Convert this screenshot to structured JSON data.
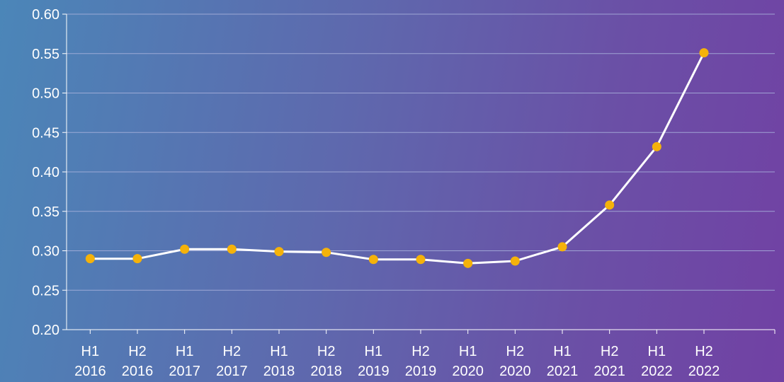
{
  "chart_data": {
    "type": "line",
    "title": "",
    "xlabel": "",
    "ylabel": "",
    "categories": [
      [
        "H1",
        "2016"
      ],
      [
        "H2",
        "2016"
      ],
      [
        "H1",
        "2017"
      ],
      [
        "H2",
        "2017"
      ],
      [
        "H1",
        "2018"
      ],
      [
        "H2",
        "2018"
      ],
      [
        "H1",
        "2019"
      ],
      [
        "H2",
        "2019"
      ],
      [
        "H1",
        "2020"
      ],
      [
        "H2",
        "2020"
      ],
      [
        "H1",
        "2021"
      ],
      [
        "H2",
        "2021"
      ],
      [
        "H1",
        "2022"
      ],
      [
        "H2",
        "2022"
      ]
    ],
    "series": [
      {
        "values": [
          0.29,
          0.29,
          0.302,
          0.302,
          0.299,
          0.298,
          0.289,
          0.289,
          0.284,
          0.287,
          0.305,
          0.358,
          0.432,
          0.551
        ]
      }
    ],
    "ylim": [
      0.2,
      0.6
    ],
    "yticks": [
      "0.20",
      "0.25",
      "0.30",
      "0.35",
      "0.40",
      "0.45",
      "0.50",
      "0.55",
      "0.60"
    ],
    "grid": true,
    "legend": "none",
    "colors": {
      "line": "#ffffff",
      "marker": "#f5b20a",
      "grid": "#a9b1dc",
      "axis": "#ffffff"
    }
  }
}
